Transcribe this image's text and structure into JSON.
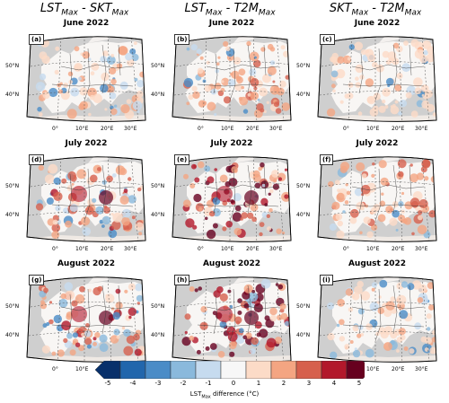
{
  "columns": [
    {
      "a": "LST",
      "as": "Max",
      "b": "SKT",
      "bs": "Max"
    },
    {
      "a": "LST",
      "as": "Max",
      "b": "T2M",
      "bs": "Max"
    },
    {
      "a": "SKT",
      "as": "Max",
      "b": "T2M",
      "bs": "Max"
    }
  ],
  "panels": [
    {
      "tag": "(a)",
      "title": "June 2022",
      "intensity": 0.35,
      "cool": 0.3
    },
    {
      "tag": "(b)",
      "title": "June 2022",
      "intensity": 0.45,
      "cool": 0.15
    },
    {
      "tag": "(c)",
      "title": "June 2022",
      "intensity": 0.25,
      "cool": 0.15
    },
    {
      "tag": "(d)",
      "title": "July 2022",
      "intensity": 0.55,
      "cool": 0.25
    },
    {
      "tag": "(e)",
      "title": "July 2022",
      "intensity": 0.85,
      "cool": 0.1
    },
    {
      "tag": "(f)",
      "title": "July 2022",
      "intensity": 0.45,
      "cool": 0.1
    },
    {
      "tag": "(g)",
      "title": "August 2022",
      "intensity": 0.6,
      "cool": 0.2
    },
    {
      "tag": "(h)",
      "title": "August 2022",
      "intensity": 0.9,
      "cool": 0.15
    },
    {
      "tag": "(i)",
      "title": "August 2022",
      "intensity": 0.35,
      "cool": 0.3
    }
  ],
  "lat_labels": [
    "50°N",
    "40°N"
  ],
  "lon_labels": [
    "0°",
    "10°E",
    "20°E",
    "30°E"
  ],
  "colorbar": {
    "ticks": [
      "-5",
      "-4",
      "-3",
      "-2",
      "-1",
      "0",
      "1",
      "2",
      "3",
      "4",
      "5"
    ],
    "colors": [
      "#08306b",
      "#2166ac",
      "#4a8cc7",
      "#8ab9dc",
      "#c6dbef",
      "#f7f7f7",
      "#fcdbc7",
      "#f4a582",
      "#d6604d",
      "#b2182b",
      "#67001f"
    ],
    "label_main": "LST",
    "label_sub": "Max",
    "label_rest": " difference (°C)"
  }
}
